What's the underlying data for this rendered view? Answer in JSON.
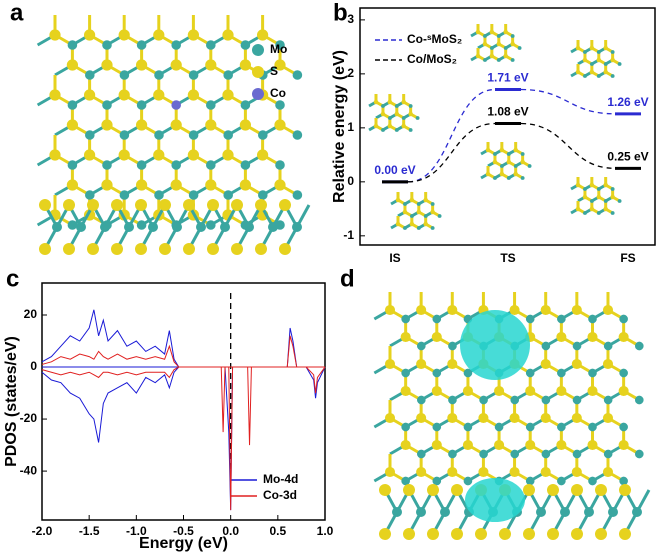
{
  "panels": [
    "a",
    "b",
    "c",
    "d"
  ],
  "legend_a": [
    {
      "label": "Mo",
      "color": "#3aa6a0"
    },
    {
      "label": "S",
      "color": "#e6d21e"
    },
    {
      "label": "Co",
      "color": "#6a6ad0"
    }
  ],
  "chart_data": [
    {
      "type": "energy",
      "ylabel": "Relative energy (eV)",
      "categories": [
        "IS",
        "TS",
        "FS"
      ],
      "ylim": [
        -1.17,
        3.22
      ],
      "yticks": [
        -1,
        0,
        1,
        2,
        3
      ],
      "series": [
        {
          "name": "Co-ˢMoS₂",
          "color": "#2b2bd1",
          "values": [
            0.0,
            1.71,
            1.26
          ],
          "value_labels": [
            "0.00 eV",
            "1.71 eV",
            "1.26 eV"
          ]
        },
        {
          "name": "Co/MoS₂",
          "color": "#000000",
          "values": [
            0.0,
            1.08,
            0.25
          ],
          "value_labels": [
            null,
            "1.08 eV",
            "0.25 eV"
          ]
        }
      ]
    },
    {
      "type": "line",
      "xlabel": "Energy (eV)",
      "ylabel": "PDOS (states/eV)",
      "xlim": [
        -2,
        1
      ],
      "ylim": [
        -58.8,
        32.3
      ],
      "xticks": [
        {
          "value": -2,
          "label": "-2.0"
        },
        {
          "value": -1.5,
          "label": "-1.5"
        },
        {
          "value": -1,
          "label": "-1.0"
        },
        {
          "value": -0.5,
          "label": "-0.5"
        },
        {
          "value": 0,
          "label": "0.0"
        },
        {
          "value": 0.5,
          "label": "0.5"
        },
        {
          "value": 1,
          "label": "1.0"
        }
      ],
      "yticks": [
        -40,
        -20,
        0,
        20
      ],
      "vline": 0,
      "legend": "lower right",
      "x": [
        -2.0,
        -1.9,
        -1.8,
        -1.7,
        -1.6,
        -1.5,
        -1.45,
        -1.4,
        -1.35,
        -1.3,
        -1.2,
        -1.1,
        -1.0,
        -0.9,
        -0.8,
        -0.7,
        -0.65,
        -0.6,
        -0.55,
        -0.1,
        -0.08,
        -0.06,
        -0.02,
        0,
        0.02,
        0.18,
        0.2,
        0.22,
        0.6,
        0.63,
        0.66,
        0.7,
        0.8,
        0.88,
        0.9,
        0.92,
        1.0
      ],
      "series": [
        {
          "name": "Mo-4d",
          "color": "#1a1ad6",
          "values": [
            2,
            4,
            8,
            12,
            10,
            15,
            22,
            12,
            18,
            10,
            14,
            8,
            10,
            6,
            8,
            5,
            14,
            3,
            0,
            0,
            0,
            0,
            0,
            0,
            0,
            0,
            0,
            0,
            0,
            15,
            10,
            0,
            0,
            0,
            0,
            0,
            0
          ],
          "values_down": [
            -2,
            -5,
            -6,
            -10,
            -12,
            -18,
            -20,
            -29,
            -14,
            -10,
            -8,
            -6,
            -10,
            -4,
            -6,
            -3,
            -8,
            -2,
            0,
            0,
            0,
            0,
            -25,
            -55,
            0,
            0,
            0,
            0,
            0,
            0,
            0,
            0,
            0,
            -5,
            -12,
            -6,
            0
          ]
        },
        {
          "name": "Co-3d",
          "color": "#e02020",
          "values": [
            1,
            2,
            4,
            3,
            5,
            4,
            3,
            6,
            4,
            3,
            5,
            3,
            4,
            3,
            4,
            3,
            8,
            2,
            0,
            0,
            0,
            0,
            0,
            0,
            0,
            0,
            0,
            0,
            0,
            12,
            8,
            0,
            0,
            0,
            0,
            0,
            0
          ],
          "values_down": [
            -1,
            -2,
            -3,
            -2,
            -3,
            -2,
            -3,
            -4,
            -2,
            -2,
            -3,
            -2,
            -3,
            -2,
            -2,
            -2,
            -4,
            -1,
            0,
            0,
            -25,
            0,
            0,
            -55,
            0,
            0,
            -30,
            0,
            0,
            0,
            0,
            0,
            0,
            -3,
            -10,
            -4,
            0
          ]
        }
      ]
    }
  ]
}
